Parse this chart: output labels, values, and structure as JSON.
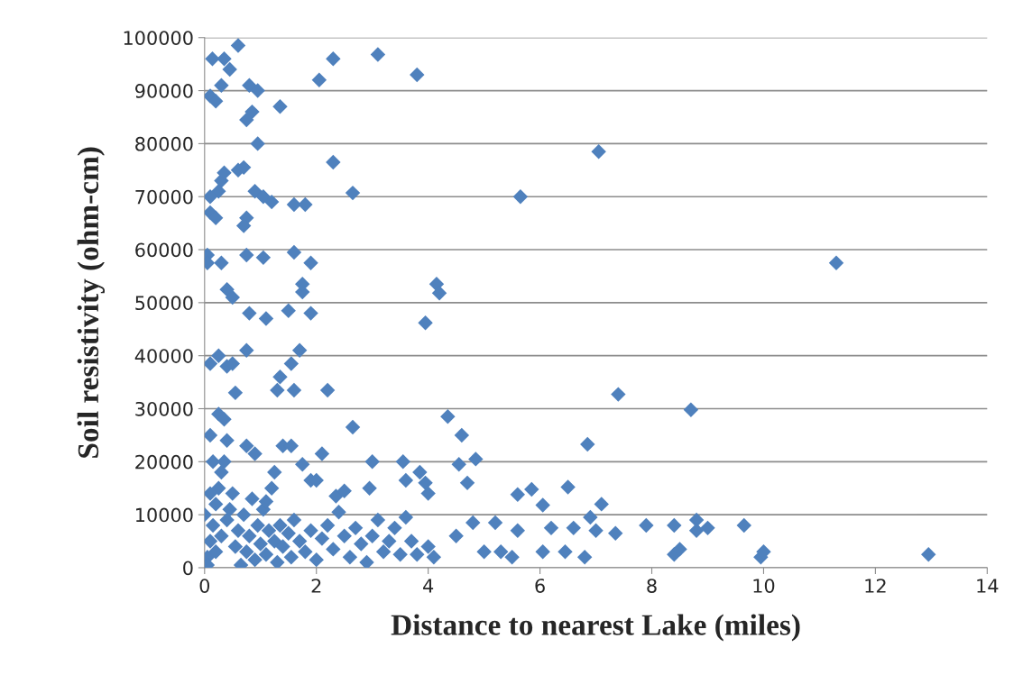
{
  "chart_data": {
    "type": "scatter",
    "xlabel": "Distance to nearest Lake (miles)",
    "ylabel": "Soil resistivity (ohm-cm)",
    "marker": "diamond",
    "grid": "y",
    "legend": false,
    "xlim": [
      0,
      14
    ],
    "xticks": [
      0,
      2,
      4,
      6,
      8,
      10,
      12,
      14
    ],
    "ylim": [
      0,
      100000
    ],
    "yticks": [
      0,
      10000,
      20000,
      30000,
      40000,
      50000,
      60000,
      70000,
      80000,
      90000,
      100000
    ],
    "series": [
      {
        "color": "#4f81bd",
        "x": [
          0.14,
          0.35,
          0.6,
          0.45,
          0.3,
          0.1,
          0.2,
          0.8,
          0.95,
          0.85,
          0.75,
          0.95,
          1.35,
          2.05,
          2.3,
          3.1,
          3.8,
          0.3,
          0.25,
          0.35,
          0.6,
          0.7,
          0.1,
          0.1,
          0.2,
          0.75,
          0.7,
          0.9,
          1.05,
          1.2,
          1.6,
          1.8,
          2.3,
          2.65,
          5.65,
          7.05,
          0.05,
          0.05,
          0.3,
          0.75,
          1.05,
          1.6,
          1.9,
          0.4,
          0.5,
          0.8,
          1.1,
          1.5,
          1.75,
          1.75,
          1.9,
          4.15,
          4.2,
          3.95,
          11.3,
          0.1,
          0.25,
          0.4,
          0.5,
          0.75,
          0.55,
          1.3,
          1.35,
          1.55,
          1.7,
          1.6,
          2.2,
          0.1,
          0.25,
          0.35,
          0.4,
          0.75,
          0.9,
          1.4,
          1.55,
          1.75,
          1.9,
          2.0,
          2.1,
          2.65,
          3.0,
          2.95,
          3.55,
          3.6,
          3.85,
          3.95,
          4.0,
          4.35,
          4.6,
          4.55,
          4.7,
          4.85,
          5.6,
          5.85,
          6.05,
          6.5,
          6.85,
          7.4,
          8.7,
          7.1,
          7.35,
          7.9,
          8.4,
          8.4,
          8.5,
          8.8,
          8.8,
          9.0,
          9.65,
          9.95,
          10.0,
          12.95,
          6.8,
          6.45,
          6.05,
          6.2,
          6.6,
          6.9,
          7.0,
          5.5,
          5.6,
          5.2,
          5.0,
          5.3,
          4.8,
          4.5,
          4.1,
          4.0,
          3.8,
          0.05,
          0.1,
          0.15,
          0.2,
          0.25,
          0.3,
          0.35,
          0.2,
          0.3,
          0.4,
          0.45,
          0.5,
          0.55,
          0.6,
          0.65,
          0.7,
          0.75,
          0.8,
          0.85,
          0.9,
          0.95,
          1.0,
          1.05,
          1.1,
          1.15,
          1.2,
          1.25,
          1.3,
          1.35,
          1.4,
          1.5,
          1.55,
          1.6,
          1.7,
          1.8,
          1.9,
          2.0,
          2.1,
          2.2,
          2.3,
          2.4,
          2.5,
          2.6,
          2.7,
          2.8,
          2.9,
          3.0,
          3.1,
          3.2,
          3.3,
          3.4,
          3.5,
          3.6,
          3.7,
          0.05,
          0.0,
          0.1,
          0.15,
          2.35,
          2.5,
          1.25,
          1.1
        ],
        "values": [
          96000,
          96000,
          98500,
          94000,
          91000,
          89000,
          88000,
          91000,
          90000,
          86000,
          84500,
          80000,
          87000,
          92000,
          96000,
          96800,
          93000,
          73000,
          71000,
          74500,
          75000,
          75500,
          70000,
          67000,
          66000,
          66000,
          64500,
          71000,
          70000,
          69000,
          68500,
          68500,
          76500,
          70700,
          70000,
          78500,
          59000,
          57500,
          57500,
          59000,
          58500,
          59500,
          57500,
          52500,
          51000,
          48000,
          47000,
          48500,
          52000,
          53500,
          48000,
          53500,
          51800,
          46200,
          57500,
          38500,
          40000,
          38000,
          38500,
          41000,
          33000,
          33500,
          36000,
          38500,
          41000,
          33500,
          33500,
          25000,
          29000,
          28000,
          24000,
          23000,
          21500,
          23000,
          23000,
          19500,
          16500,
          16500,
          21500,
          26500,
          20000,
          15000,
          20000,
          16500,
          18000,
          16000,
          14000,
          28500,
          25000,
          19500,
          16000,
          20500,
          13800,
          14800,
          11800,
          15200,
          23300,
          32700,
          29800,
          12000,
          6500,
          8000,
          8000,
          2500,
          3500,
          9000,
          7000,
          7500,
          8000,
          2000,
          3000,
          2500,
          2000,
          3000,
          3000,
          7500,
          7500,
          9500,
          7000,
          2000,
          7000,
          8500,
          3000,
          3000,
          8500,
          6000,
          2000,
          4000,
          2500,
          2000,
          5000,
          8000,
          12000,
          15000,
          18000,
          20000,
          3000,
          6000,
          9000,
          11000,
          14000,
          4000,
          7000,
          500,
          10000,
          3000,
          6000,
          13000,
          1500,
          8000,
          4500,
          11000,
          2500,
          7000,
          15000,
          5000,
          1000,
          8000,
          4000,
          6500,
          2000,
          9000,
          5000,
          3000,
          7000,
          1500,
          5500,
          8000,
          3500,
          10500,
          6000,
          2000,
          7500,
          4500,
          1000,
          6000,
          9000,
          3000,
          5000,
          7500,
          2500,
          9500,
          5000,
          500,
          10000,
          14000,
          20000,
          13500,
          14500,
          18000,
          12500
        ]
      }
    ]
  }
}
